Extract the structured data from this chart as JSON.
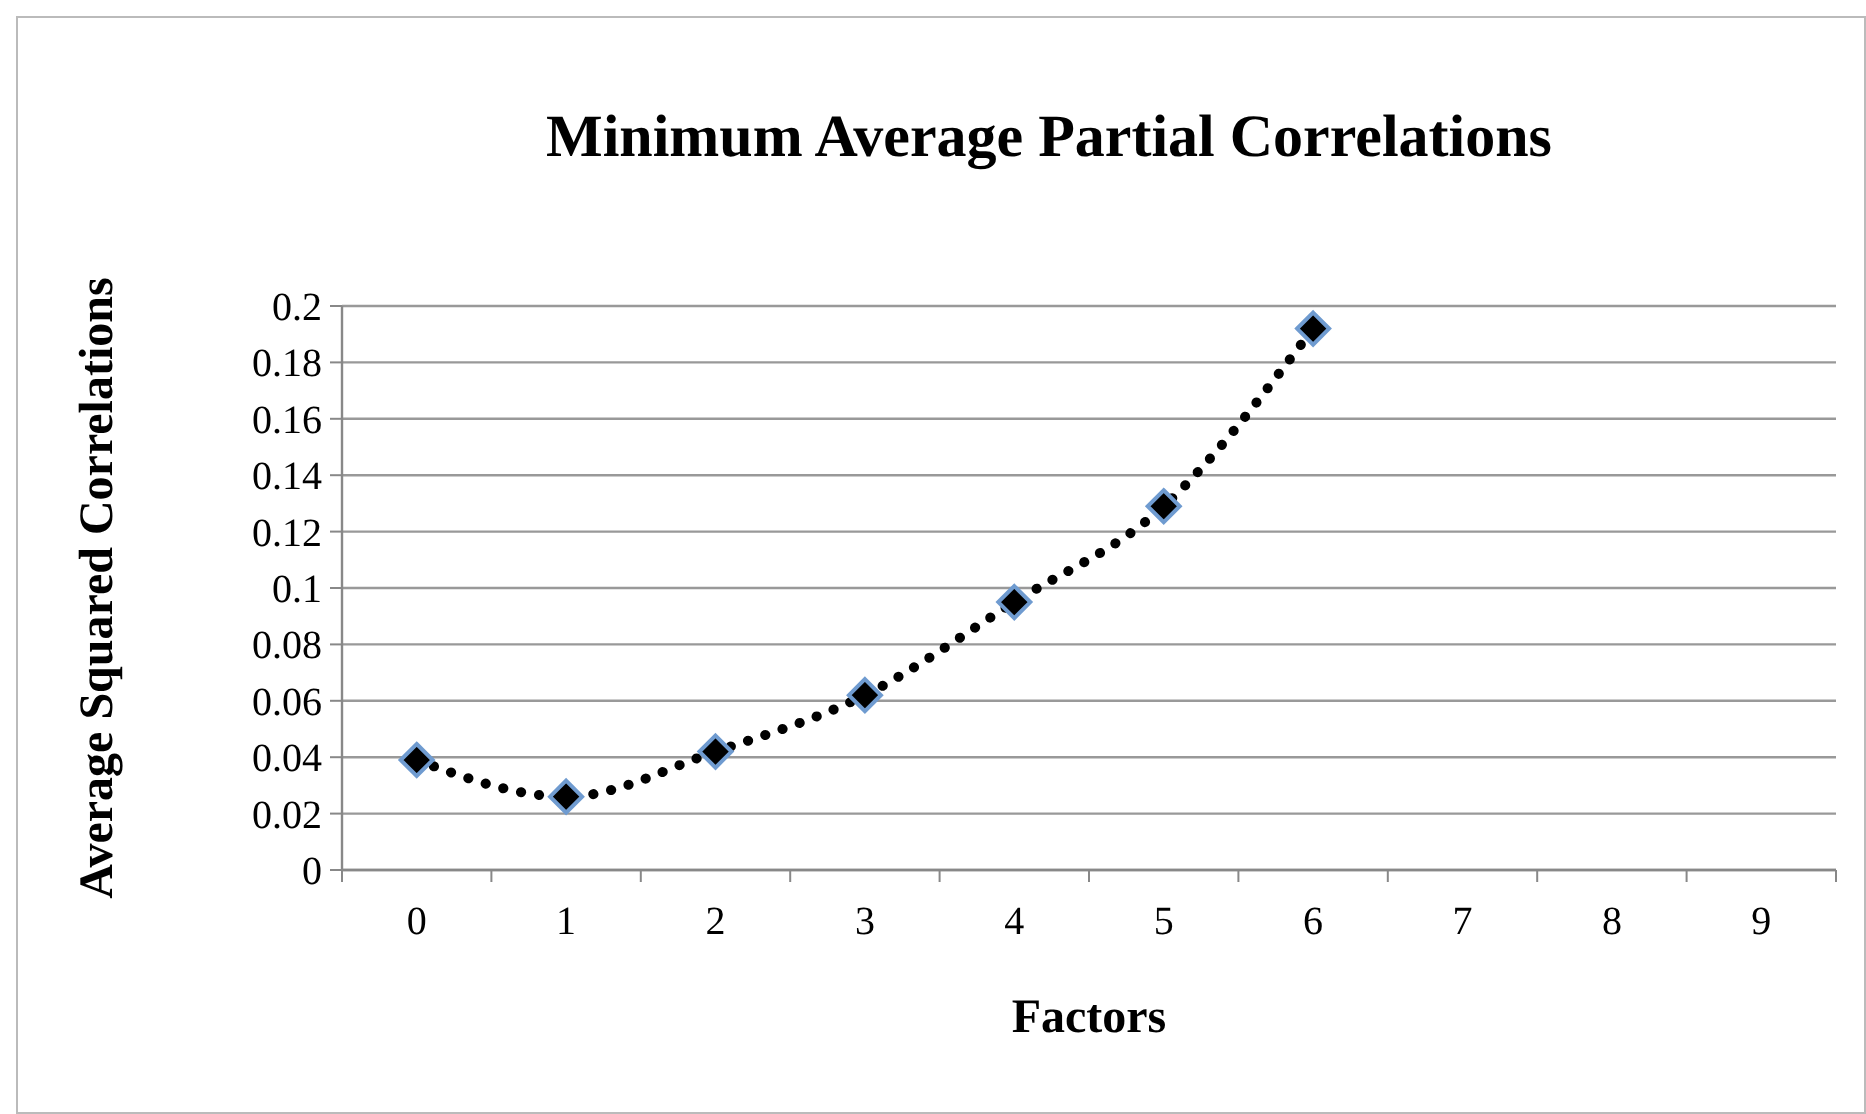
{
  "chart_data": {
    "type": "line",
    "title": "Minimum Average Partial Correlations",
    "xlabel": "Factors",
    "ylabel": "Average Squared Correlations",
    "categories": [
      "0",
      "1",
      "2",
      "3",
      "4",
      "5",
      "6",
      "7",
      "8",
      "9"
    ],
    "series": [
      {
        "color": "#000000",
        "values": [
          0.039,
          0.026,
          0.042,
          0.062,
          0.095,
          0.129,
          0.192,
          null,
          null,
          null
        ]
      }
    ],
    "ylim": [
      0,
      0.2
    ],
    "yticks": [
      0,
      0.02,
      0.04,
      0.06,
      0.08,
      0.1,
      0.12,
      0.14,
      0.16,
      0.18,
      0.2
    ],
    "grid": "y",
    "marker": "diamond",
    "line_style": "dotted"
  }
}
